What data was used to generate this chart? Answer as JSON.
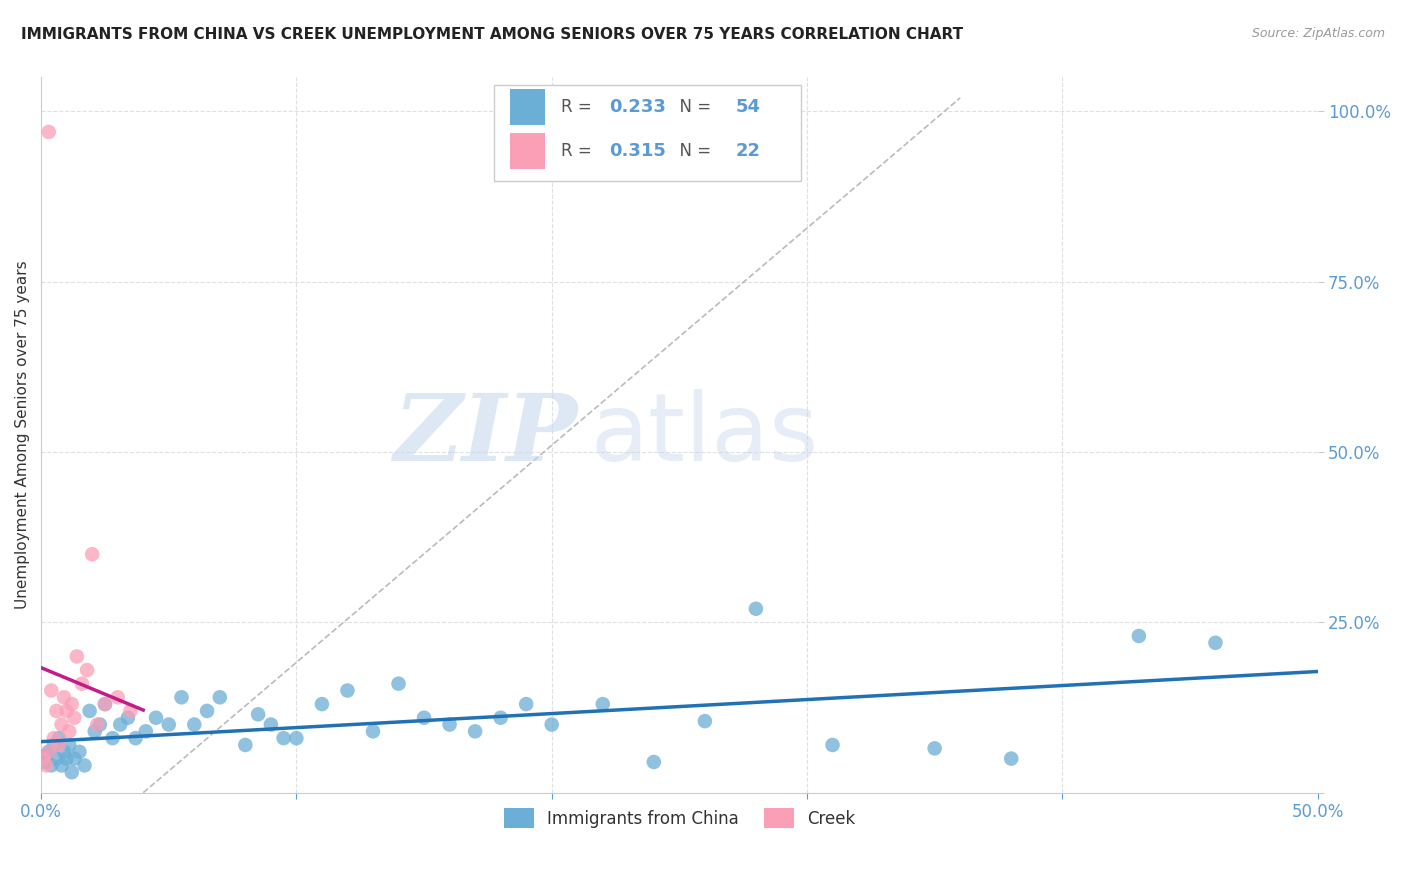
{
  "title": "IMMIGRANTS FROM CHINA VS CREEK UNEMPLOYMENT AMONG SENIORS OVER 75 YEARS CORRELATION CHART",
  "source": "Source: ZipAtlas.com",
  "ylabel": "Unemployment Among Seniors over 75 years",
  "xlim": [
    0,
    0.5
  ],
  "ylim": [
    0,
    1.05
  ],
  "xtick_vals": [
    0.0,
    0.1,
    0.2,
    0.3,
    0.4,
    0.5
  ],
  "xtick_labels": [
    "0.0%",
    "",
    "",
    "",
    "",
    "50.0%"
  ],
  "ytick_vals": [
    0.0,
    0.25,
    0.5,
    0.75,
    1.0
  ],
  "ytick_labels": [
    "",
    "25.0%",
    "50.0%",
    "75.0%",
    "100.0%"
  ],
  "legend_label1": "Immigrants from China",
  "legend_label2": "Creek",
  "blue_color": "#6baed6",
  "pink_color": "#fa9fb5",
  "blue_line_color": "#2171b5",
  "pink_line_color": "#c51b8a",
  "blue_R": "0.233",
  "blue_N": "54",
  "pink_R": "0.315",
  "pink_N": "22",
  "blue_scatter_x": [
    0.001,
    0.002,
    0.003,
    0.004,
    0.005,
    0.006,
    0.007,
    0.008,
    0.009,
    0.01,
    0.011,
    0.012,
    0.013,
    0.015,
    0.017,
    0.019,
    0.021,
    0.023,
    0.025,
    0.028,
    0.031,
    0.034,
    0.037,
    0.041,
    0.045,
    0.05,
    0.055,
    0.06,
    0.065,
    0.07,
    0.08,
    0.085,
    0.09,
    0.095,
    0.1,
    0.11,
    0.12,
    0.13,
    0.14,
    0.15,
    0.16,
    0.17,
    0.18,
    0.2,
    0.22,
    0.24,
    0.26,
    0.28,
    0.31,
    0.35,
    0.38,
    0.43,
    0.46,
    0.19
  ],
  "blue_scatter_y": [
    0.045,
    0.055,
    0.06,
    0.04,
    0.07,
    0.05,
    0.08,
    0.04,
    0.06,
    0.05,
    0.07,
    0.03,
    0.05,
    0.06,
    0.04,
    0.12,
    0.09,
    0.1,
    0.13,
    0.08,
    0.1,
    0.11,
    0.08,
    0.09,
    0.11,
    0.1,
    0.14,
    0.1,
    0.12,
    0.14,
    0.07,
    0.115,
    0.1,
    0.08,
    0.08,
    0.13,
    0.15,
    0.09,
    0.16,
    0.11,
    0.1,
    0.09,
    0.11,
    0.1,
    0.13,
    0.045,
    0.105,
    0.27,
    0.07,
    0.065,
    0.05,
    0.23,
    0.22,
    0.13
  ],
  "pink_scatter_x": [
    0.003,
    0.001,
    0.002,
    0.003,
    0.004,
    0.005,
    0.006,
    0.007,
    0.008,
    0.009,
    0.01,
    0.011,
    0.012,
    0.013,
    0.014,
    0.016,
    0.018,
    0.02,
    0.022,
    0.025,
    0.03,
    0.035
  ],
  "pink_scatter_y": [
    0.97,
    0.05,
    0.04,
    0.06,
    0.15,
    0.08,
    0.12,
    0.07,
    0.1,
    0.14,
    0.12,
    0.09,
    0.13,
    0.11,
    0.2,
    0.16,
    0.18,
    0.35,
    0.1,
    0.13,
    0.14,
    0.12
  ],
  "watermark_zip": "ZIP",
  "watermark_atlas": "atlas",
  "background_color": "#ffffff",
  "grid_color": "#e0e0e0",
  "tick_color": "#5b9bd5",
  "label_color": "#333333",
  "source_color": "#999999"
}
